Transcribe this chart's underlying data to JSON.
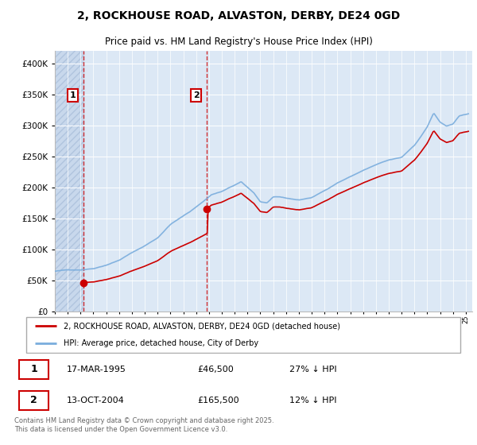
{
  "title": "2, ROCKHOUSE ROAD, ALVASTON, DERBY, DE24 0GD",
  "subtitle": "Price paid vs. HM Land Registry's House Price Index (HPI)",
  "title_fontsize": 10,
  "subtitle_fontsize": 8.5,
  "red_color": "#cc0000",
  "blue_color": "#7aaddd",
  "legend_label_red": "2, ROCKHOUSE ROAD, ALVASTON, DERBY, DE24 0GD (detached house)",
  "legend_label_blue": "HPI: Average price, detached house, City of Derby",
  "sale1_label": "1",
  "sale1_date": "17-MAR-1995",
  "sale1_price": "£46,500",
  "sale1_note": "27% ↓ HPI",
  "sale2_label": "2",
  "sale2_date": "13-OCT-2004",
  "sale2_price": "£165,500",
  "sale2_note": "12% ↓ HPI",
  "footer": "Contains HM Land Registry data © Crown copyright and database right 2025.\nThis data is licensed under the Open Government Licence v3.0.",
  "ylim_max": 420000,
  "plot_bg_color": "#dce8f5",
  "hatch_bg_color": "#c8d8ec",
  "hatch_color": "#b0c4de",
  "sale1_year": 1995.2,
  "sale1_price_val": 46500,
  "sale2_year": 2004.8,
  "sale2_price_val": 165500,
  "xmin": 1993,
  "xmax": 2025.5
}
